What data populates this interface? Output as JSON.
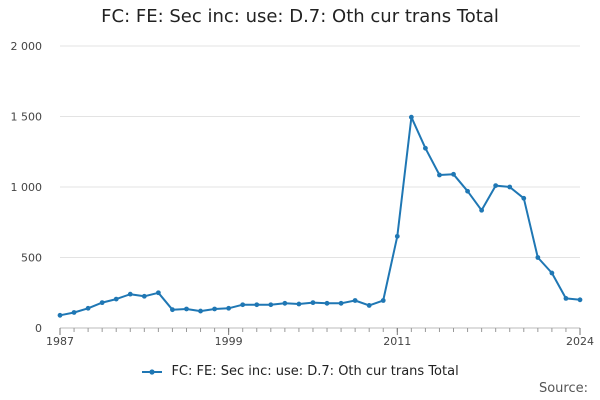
{
  "chart_data": {
    "type": "line",
    "title": "FC: FE: Sec inc: use: D.7: Oth cur trans Total",
    "xlabel": "",
    "ylabel": "",
    "x": [
      1987,
      1988,
      1989,
      1990,
      1991,
      1992,
      1993,
      1994,
      1995,
      1996,
      1997,
      1998,
      1999,
      2000,
      2001,
      2002,
      2003,
      2004,
      2005,
      2006,
      2007,
      2008,
      2009,
      2010,
      2011,
      2012,
      2013,
      2014,
      2015,
      2016,
      2017,
      2018,
      2019,
      2020,
      2021,
      2022,
      2023,
      2024
    ],
    "series": [
      {
        "name": "FC: FE: Sec inc: use: D.7: Oth cur trans Total",
        "color": "#1f77b4",
        "values": [
          90,
          110,
          140,
          180,
          205,
          240,
          225,
          250,
          130,
          135,
          120,
          135,
          140,
          165,
          165,
          165,
          175,
          170,
          180,
          175,
          175,
          195,
          160,
          195,
          650,
          1495,
          1275,
          1085,
          1090,
          970,
          835,
          1010,
          1000,
          920,
          500,
          390,
          210,
          200
        ]
      }
    ],
    "ylim": [
      0,
      2000
    ],
    "yticks": [
      0,
      500,
      1000,
      1500,
      2000
    ],
    "ytick_labels": [
      "0",
      "500",
      "1 000",
      "1 500",
      "2 000"
    ],
    "xticks": [
      1987,
      1999,
      2011,
      2024
    ],
    "xtick_labels": [
      "1987",
      "1999",
      "2011",
      "2024"
    ],
    "grid": true,
    "legend_position": "bottom"
  },
  "source_label": "Source:"
}
